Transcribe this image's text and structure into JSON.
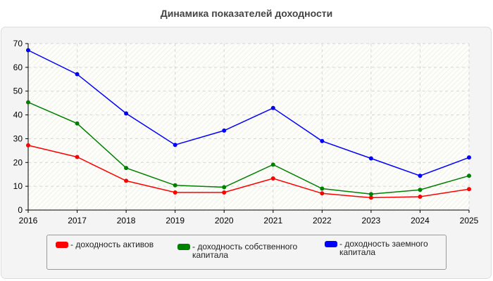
{
  "chart_data": {
    "type": "line",
    "title": "Динамика показателей доходности",
    "x": [
      "2016",
      "2017",
      "2018",
      "2019",
      "2020",
      "2021",
      "2022",
      "2023",
      "2024",
      "2025"
    ],
    "series": [
      {
        "name": "- доходность активов",
        "color": "#ff0000",
        "values": [
          27.2,
          22.3,
          12.3,
          7.4,
          7.4,
          13.3,
          7.0,
          5.2,
          5.6,
          8.8
        ]
      },
      {
        "name": "- доходность собственного капитала",
        "color": "#008000",
        "values": [
          45.3,
          36.4,
          17.7,
          10.4,
          9.6,
          19.1,
          9.0,
          6.7,
          8.5,
          14.4
        ]
      },
      {
        "name": "- доходность заемного капитала",
        "color": "#0000ff",
        "values": [
          67.2,
          57.1,
          40.6,
          27.4,
          33.4,
          42.9,
          29.0,
          21.7,
          14.4,
          22.1
        ]
      }
    ],
    "ylim": [
      0,
      70
    ],
    "yticks": [
      0,
      10,
      20,
      30,
      40,
      50,
      60,
      70
    ],
    "grid": true,
    "legend_position": "bottom"
  },
  "legend": {
    "item1_line1": "- доходность активов",
    "item2_line1": "- доходность собственного",
    "item2_line2": "капитала",
    "item3_line1": "- доходность заемного",
    "item3_line2": "капитала"
  }
}
